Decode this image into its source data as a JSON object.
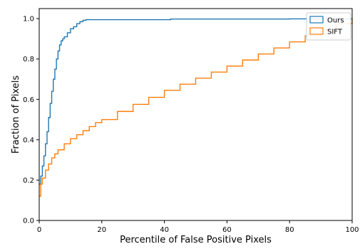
{
  "chart_data": {
    "type": "line",
    "title": "",
    "xlabel": "Percentile of False Positive Pixels",
    "ylabel": "Fraction of Pixels",
    "xlim": [
      0,
      100
    ],
    "ylim": [
      0,
      1.05
    ],
    "xticks": [
      0,
      20,
      40,
      60,
      80,
      100
    ],
    "yticks": [
      0.0,
      0.2,
      0.4,
      0.6,
      0.8,
      1.0
    ],
    "xtick_labels": [
      "0",
      "20",
      "40",
      "60",
      "80",
      "100"
    ],
    "ytick_labels": [
      "0.0",
      "0.2",
      "0.4",
      "0.6",
      "0.8",
      "1.0"
    ],
    "grid": false,
    "legend_position": "top-right",
    "series": [
      {
        "name": "Ours",
        "color": "#1f77b4",
        "step": true,
        "x": [
          0,
          0.5,
          1,
          1.5,
          2,
          2.5,
          3,
          3.5,
          4,
          4.5,
          5,
          5.5,
          6,
          6.5,
          7,
          7.5,
          8,
          9,
          10,
          11,
          12,
          13,
          14,
          15,
          20,
          40,
          42,
          60,
          80,
          100
        ],
        "y": [
          0.18,
          0.22,
          0.27,
          0.32,
          0.38,
          0.44,
          0.51,
          0.58,
          0.64,
          0.7,
          0.75,
          0.8,
          0.84,
          0.87,
          0.89,
          0.9,
          0.91,
          0.93,
          0.95,
          0.96,
          0.975,
          0.985,
          0.992,
          0.995,
          0.995,
          0.995,
          0.998,
          0.998,
          0.999,
          1.0
        ]
      },
      {
        "name": "SIFT",
        "color": "#ff7f0e",
        "step": true,
        "x": [
          0,
          0.5,
          1,
          2,
          3,
          4,
          5,
          6,
          8,
          10,
          12,
          14,
          16,
          18,
          20,
          25,
          30,
          35,
          40,
          45,
          50,
          55,
          60,
          65,
          70,
          75,
          80,
          85,
          90,
          95,
          100
        ],
        "y": [
          0.12,
          0.18,
          0.21,
          0.25,
          0.28,
          0.31,
          0.33,
          0.35,
          0.38,
          0.405,
          0.425,
          0.445,
          0.465,
          0.485,
          0.5,
          0.54,
          0.575,
          0.61,
          0.645,
          0.675,
          0.705,
          0.735,
          0.765,
          0.795,
          0.825,
          0.855,
          0.885,
          0.915,
          0.945,
          0.975,
          1.0
        ]
      }
    ]
  }
}
